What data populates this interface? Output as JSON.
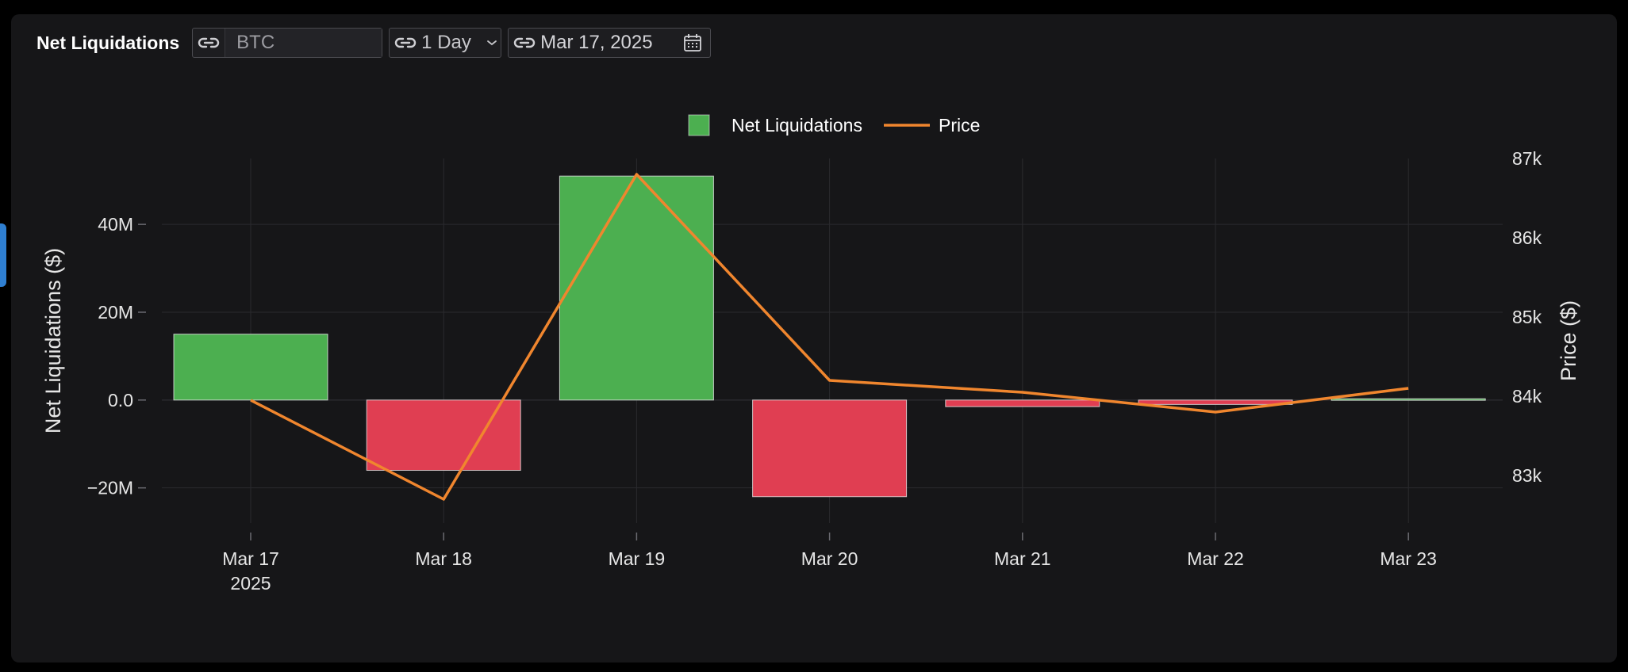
{
  "toolbar": {
    "title": "Net Liquidations",
    "asset_value": "BTC",
    "interval_value": "1 Day",
    "date_value": "Mar 17, 2025"
  },
  "icons": {
    "link": "link-icon",
    "chevron": "chevron-down-icon",
    "calendar": "calendar-icon"
  },
  "colors": {
    "positive": "#4caf50",
    "negative": "#e03e52",
    "price_line": "#f0862e",
    "panel_bg": "#161618"
  },
  "chart_data": {
    "type": "bar",
    "x_tick_labels": [
      "Mar 17",
      "Mar 18",
      "Mar 19",
      "Mar 20",
      "Mar 21",
      "Mar 22",
      "Mar 23"
    ],
    "x_year_label": "2025",
    "ylabel": "Net Liquidations ($)",
    "y2label": "Price ($)",
    "ylim": [
      -28000000,
      55000000
    ],
    "y_ticks": [
      -20000000,
      0,
      20000000,
      40000000
    ],
    "y_tick_labels": [
      "−20M",
      "0.0",
      "20M",
      "40M"
    ],
    "y2lim": [
      82400000,
      87000000
    ],
    "y2lim_note": "price axis range in dollars: 82400 to 87000",
    "y2_range": [
      82400,
      87000
    ],
    "y2_ticks": [
      83000,
      84000,
      85000,
      86000,
      87000
    ],
    "y2_tick_labels": [
      "83k",
      "84k",
      "85k",
      "86k",
      "87k"
    ],
    "grid": true,
    "legend_position": "top-center",
    "series": [
      {
        "name": "Net Liquidations",
        "type": "bar",
        "values": [
          15000000,
          -16000000,
          51000000,
          -22000000,
          -1500000,
          -1000000,
          300000
        ]
      },
      {
        "name": "Price",
        "type": "line",
        "axis": "right",
        "values": [
          83950,
          82700,
          86800,
          84200,
          84050,
          83800,
          84100
        ]
      }
    ]
  }
}
